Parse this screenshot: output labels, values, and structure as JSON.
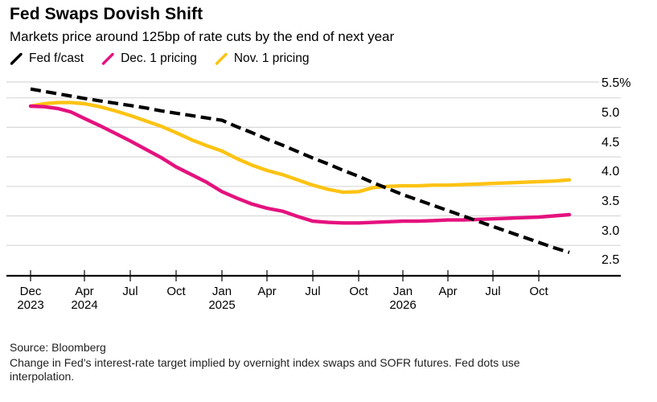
{
  "title": "Fed Swaps Dovish Shift",
  "subtitle": "Markets price around 125bp of rate cuts by the end of next year",
  "legend": [
    {
      "label": "Fed f/cast",
      "color": "#000000",
      "dashed": true
    },
    {
      "label": "Dec. 1 pricing",
      "color": "#e4127e",
      "dashed": false
    },
    {
      "label": "Nov. 1 pricing",
      "color": "#fdc313",
      "dashed": false
    }
  ],
  "source": "Source: Bloomberg",
  "footnote_line1": "Change in Fed's interest-rate target implied by overnight index swaps and SOFR futures. Fed dots use",
  "footnote_line2": "interpolation.",
  "chart_data": {
    "type": "line",
    "title": "Fed Swaps Dovish Shift",
    "x_unit": "monthly from Dec 2023 to Dec 2026",
    "x_tick_labels": [
      {
        "month": "Dec",
        "year": "2023"
      },
      {
        "month": "Apr",
        "year": "2024"
      },
      {
        "month": "Jul",
        "year": ""
      },
      {
        "month": "Oct",
        "year": ""
      },
      {
        "month": "Jan",
        "year": "2025"
      },
      {
        "month": "Apr",
        "year": ""
      },
      {
        "month": "Jul",
        "year": ""
      },
      {
        "month": "Oct",
        "year": ""
      },
      {
        "month": "Jan",
        "year": "2026"
      },
      {
        "month": "Apr",
        "year": ""
      },
      {
        "month": "Jul",
        "year": ""
      },
      {
        "month": "Oct",
        "year": ""
      }
    ],
    "y_axis_labels": [
      "5.5%",
      "5.0",
      "4.5",
      "4.0",
      "3.5",
      "3.0",
      "2.5"
    ],
    "y_gridline_values": [
      5.5,
      5.0,
      4.5,
      4.0,
      3.5,
      3.0,
      2.5
    ],
    "ylim": [
      2.5,
      5.77
    ],
    "grid": true,
    "legend_position": "top",
    "series": [
      {
        "name": "Fed f/cast",
        "color": "#000000",
        "dashed": true,
        "values": [
          5.65,
          5.61,
          5.57,
          5.53,
          5.49,
          5.45,
          5.41,
          5.37,
          5.33,
          5.28,
          5.24,
          5.2,
          5.16,
          5.12,
          5.01,
          4.91,
          4.8,
          4.7,
          4.59,
          4.48,
          4.38,
          4.27,
          4.17,
          4.06,
          3.96,
          3.86,
          3.77,
          3.68,
          3.59,
          3.5,
          3.41,
          3.32,
          3.23,
          3.14,
          3.05,
          2.96,
          2.88
        ]
      },
      {
        "name": "Nov. 1 pricing",
        "color": "#fdc313",
        "dashed": false,
        "values": [
          5.36,
          5.4,
          5.42,
          5.42,
          5.4,
          5.35,
          5.28,
          5.2,
          5.11,
          5.02,
          4.91,
          4.79,
          4.69,
          4.6,
          4.47,
          4.36,
          4.27,
          4.2,
          4.11,
          4.02,
          3.95,
          3.9,
          3.91,
          3.98,
          4.0,
          4.01,
          4.01,
          4.02,
          4.02,
          4.03,
          4.04,
          4.05,
          4.06,
          4.07,
          4.08,
          4.09,
          4.11
        ]
      },
      {
        "name": "Dec. 1 pricing",
        "color": "#e4127e",
        "dashed": false,
        "values": [
          5.36,
          5.35,
          5.32,
          5.26,
          5.15,
          5.03,
          4.9,
          4.77,
          4.63,
          4.49,
          4.33,
          4.2,
          4.07,
          3.91,
          3.8,
          3.7,
          3.63,
          3.58,
          3.49,
          3.41,
          3.39,
          3.38,
          3.38,
          3.39,
          3.4,
          3.41,
          3.41,
          3.42,
          3.43,
          3.43,
          3.44,
          3.45,
          3.46,
          3.47,
          3.48,
          3.5,
          3.52
        ]
      }
    ]
  }
}
